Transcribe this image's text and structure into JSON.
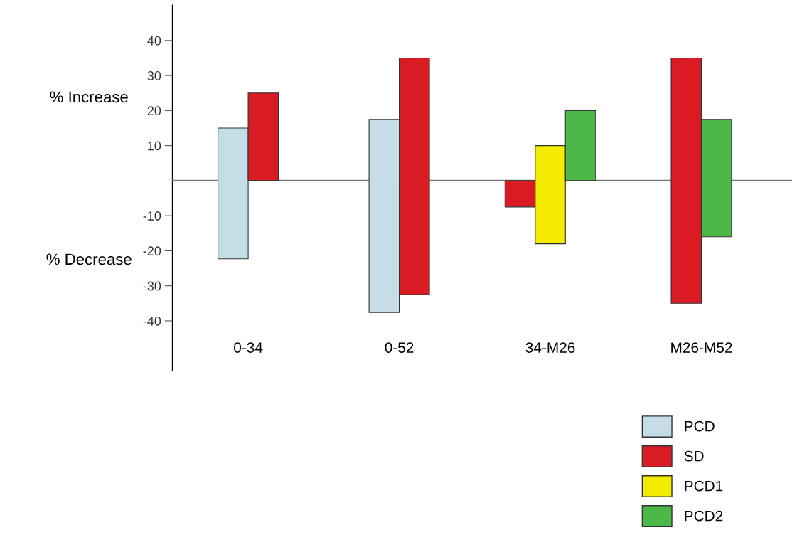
{
  "chart_data": {
    "type": "bar",
    "categories": [
      "0-34",
      "0-52",
      "34-M26",
      "M26-M52"
    ],
    "series": [
      {
        "name": "PCD",
        "color": "#c5dde6",
        "base": [
          -22.3,
          -37.6,
          null,
          null
        ],
        "values": [
          37.3,
          55.1,
          null,
          null
        ]
      },
      {
        "name": "SD",
        "color": "#d91c24",
        "base": [
          0,
          -32.5,
          -7.5,
          -35
        ],
        "values": [
          25,
          67.5,
          7.5,
          70
        ]
      },
      {
        "name": "PCD1",
        "color": "#f4ec00",
        "base": [
          null,
          null,
          -18,
          null
        ],
        "values": [
          null,
          null,
          28,
          null
        ]
      },
      {
        "name": "PCD2",
        "color": "#4cb848",
        "base": [
          null,
          null,
          0,
          -16
        ],
        "values": [
          null,
          null,
          20,
          33.5
        ]
      }
    ],
    "ylim": [
      -54,
      50
    ],
    "yticks": [
      -40,
      -30,
      -20,
      -10,
      10,
      20,
      30,
      40
    ],
    "annotations": [
      "% Increase",
      "% Decrease"
    ],
    "legend": "bottom right",
    "grid": false
  }
}
